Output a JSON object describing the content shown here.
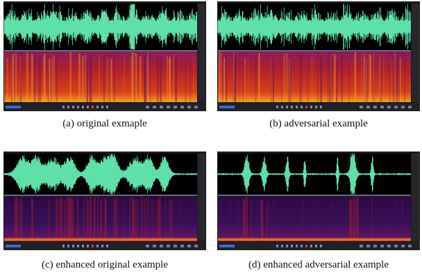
{
  "panels": [
    {
      "caption": "(a) original exmaple",
      "style": "original"
    },
    {
      "caption": "(b) adversarial example",
      "style": "original"
    },
    {
      "caption": "(c) enhanced original example",
      "style": "enhanced"
    },
    {
      "caption": "(d) enhanced adversarial example",
      "style": "sparse"
    }
  ]
}
